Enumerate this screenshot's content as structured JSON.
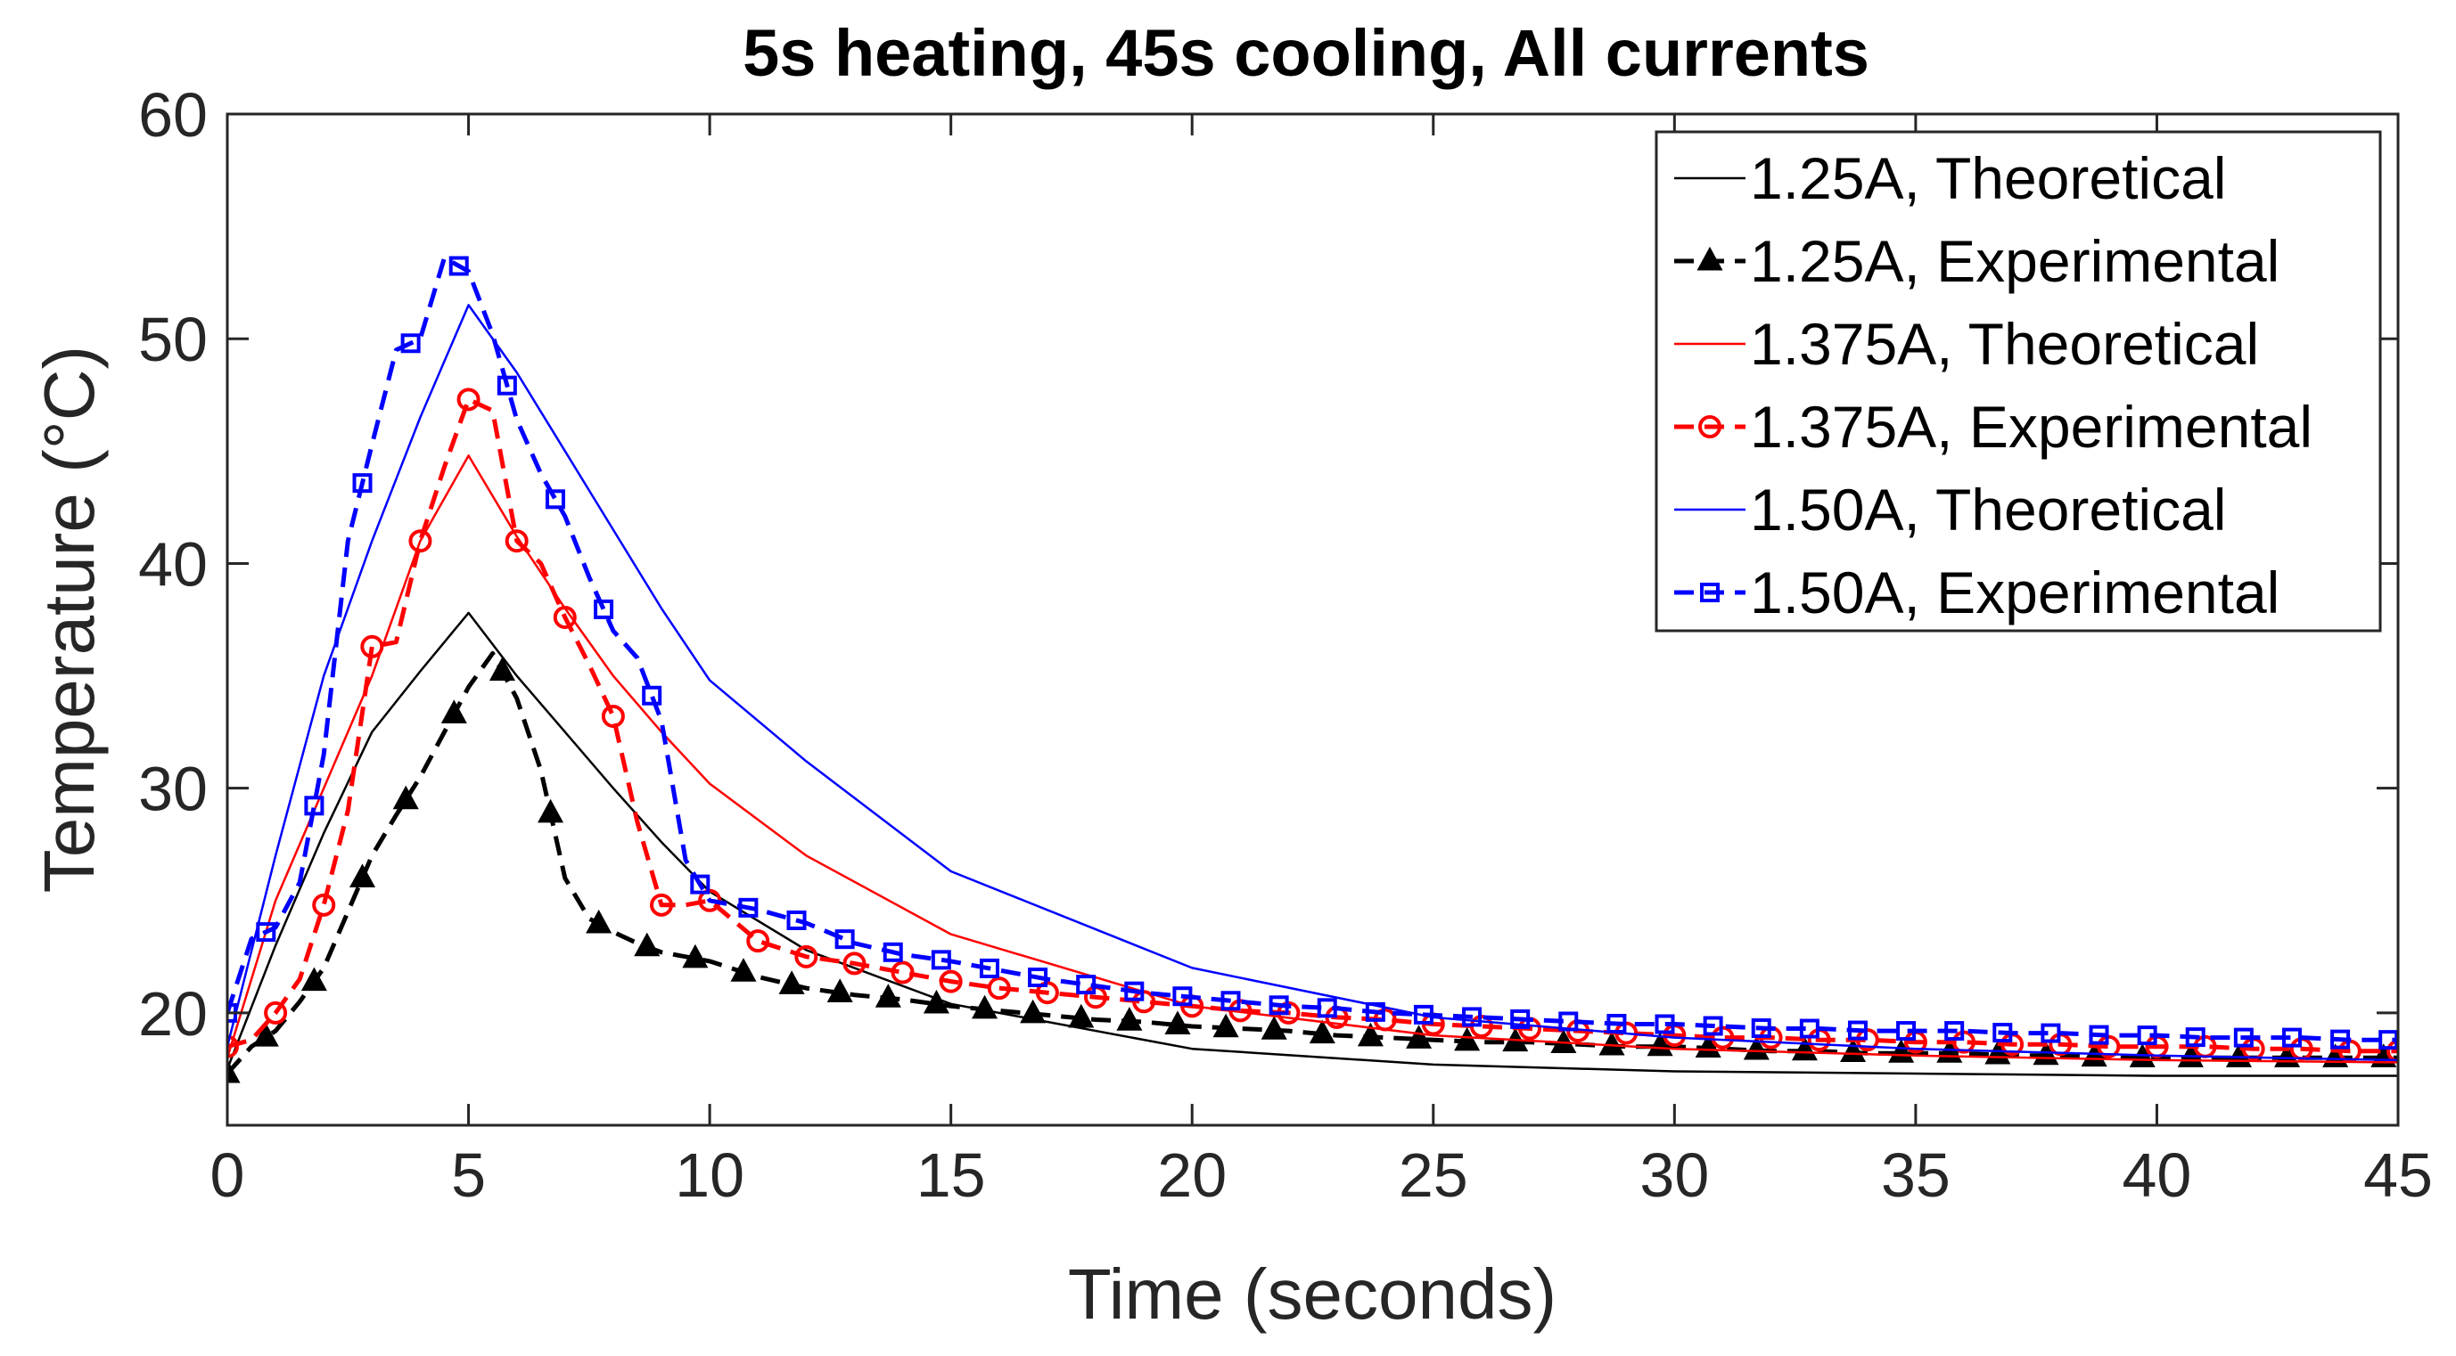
{
  "chart_data": {
    "type": "line",
    "title": "5s heating, 45s cooling, All currents",
    "xlabel": "Time (seconds)",
    "ylabel": "Temperature (°C)",
    "xlim": [
      0,
      45
    ],
    "ylim": [
      15,
      60
    ],
    "xticks": [
      0,
      5,
      10,
      15,
      20,
      25,
      30,
      35,
      40,
      45
    ],
    "yticks": [
      20,
      30,
      40,
      50,
      60
    ],
    "grid": false,
    "legend_position": "top-right",
    "series": [
      {
        "name": "1.25A, Theoretical",
        "color": "#000000",
        "style": "solid",
        "marker": "none",
        "x": [
          0,
          1,
          2,
          3,
          4,
          5,
          6,
          7,
          8,
          9,
          10,
          12,
          15,
          20,
          25,
          30,
          35,
          40,
          45
        ],
        "y": [
          17.5,
          23,
          28,
          32.5,
          35.2,
          37.8,
          35.0,
          32.5,
          30.0,
          27.6,
          25.4,
          22.8,
          20.4,
          18.4,
          17.7,
          17.4,
          17.3,
          17.2,
          17.2
        ]
      },
      {
        "name": "1.25A, Experimental",
        "color": "#000000",
        "style": "dashed",
        "marker": "triangle",
        "x": [
          0,
          0.5,
          1,
          1.5,
          2,
          2.5,
          3,
          3.5,
          4,
          4.5,
          5,
          5.5,
          6,
          6.5,
          7,
          7.5,
          8,
          8.5,
          9,
          9.5,
          10,
          11,
          12,
          13,
          14,
          15,
          16,
          17,
          18,
          19,
          20,
          21,
          22,
          23,
          24,
          25,
          26,
          27,
          28,
          29,
          30,
          31,
          32,
          33,
          34,
          35,
          36,
          37,
          38,
          39,
          40,
          41,
          42,
          43,
          44,
          45
        ],
        "y": [
          17.3,
          18.5,
          19.2,
          20.5,
          22.0,
          24.5,
          27.0,
          28.8,
          30.5,
          32.5,
          34.5,
          36.0,
          34.0,
          30.8,
          26.0,
          24.2,
          23.6,
          23.1,
          22.7,
          22.5,
          22.3,
          21.6,
          21.1,
          20.8,
          20.6,
          20.3,
          20.1,
          19.9,
          19.7,
          19.6,
          19.4,
          19.3,
          19.2,
          19.0,
          18.9,
          18.8,
          18.7,
          18.7,
          18.6,
          18.5,
          18.5,
          18.4,
          18.3,
          18.3,
          18.2,
          18.2,
          18.2,
          18.1,
          18.1,
          18.0,
          18.0,
          18.0,
          18.0,
          18.0,
          18.0,
          18.0
        ],
        "marker_x": [
          0,
          0.8,
          1.8,
          2.8,
          3.7,
          4.7,
          5.7,
          6.7,
          7.7,
          8.7,
          9.7,
          10.7,
          11.7,
          12.7,
          13.7,
          14.7,
          15.7,
          16.7,
          17.7,
          18.7,
          19.7,
          20.7,
          21.7,
          22.7,
          23.7,
          24.7,
          25.7,
          26.7,
          27.7,
          28.7,
          29.7,
          30.7,
          31.7,
          32.7,
          33.7,
          34.7,
          35.7,
          36.7,
          37.7,
          38.7,
          39.7,
          40.7,
          41.7,
          42.7,
          43.7,
          44.7
        ]
      },
      {
        "name": "1.375A, Theoretical",
        "color": "#ff0000",
        "style": "solid",
        "marker": "none",
        "x": [
          0,
          1,
          2,
          3,
          4,
          5,
          6,
          7,
          8,
          9,
          10,
          12,
          15,
          20,
          25,
          30,
          35,
          40,
          45
        ],
        "y": [
          18.0,
          25,
          30,
          35,
          41,
          44.8,
          41.2,
          38,
          35,
          32.5,
          30.2,
          27.0,
          23.5,
          20.3,
          19.0,
          18.4,
          18.1,
          17.9,
          17.8
        ]
      },
      {
        "name": "1.375A, Experimental",
        "color": "#ff0000",
        "style": "dashed",
        "marker": "circle",
        "x": [
          0,
          0.5,
          1,
          1.5,
          2,
          2.5,
          3,
          3.5,
          4,
          4.5,
          5,
          5.5,
          6,
          6.5,
          7,
          7.5,
          8,
          8.5,
          9,
          9.5,
          10,
          11,
          12,
          13,
          14,
          15,
          16,
          17,
          18,
          19,
          20,
          21,
          22,
          23,
          24,
          25,
          26,
          27,
          28,
          29,
          30,
          31,
          32,
          33,
          34,
          35,
          36,
          37,
          38,
          39,
          40,
          41,
          42,
          43,
          44,
          45
        ],
        "y": [
          18.5,
          18.8,
          20.0,
          21.5,
          24.8,
          29.0,
          36.3,
          36.5,
          41.0,
          44.3,
          47.3,
          46.8,
          41.0,
          40.0,
          37.6,
          35.5,
          33.2,
          28.5,
          24.8,
          24.8,
          25.0,
          23.2,
          22.5,
          22.2,
          21.8,
          21.4,
          21.1,
          20.9,
          20.7,
          20.5,
          20.3,
          20.1,
          20.0,
          19.8,
          19.7,
          19.5,
          19.4,
          19.3,
          19.2,
          19.1,
          19.0,
          18.9,
          18.9,
          18.8,
          18.8,
          18.7,
          18.7,
          18.6,
          18.6,
          18.5,
          18.5,
          18.5,
          18.4,
          18.4,
          18.3,
          18.3
        ],
        "marker_x": [
          0,
          1,
          2,
          3,
          4,
          5,
          6,
          7,
          8,
          9,
          10,
          11,
          12,
          13,
          14,
          15,
          16,
          17,
          18,
          19,
          20,
          21,
          22,
          23,
          24,
          25,
          26,
          27,
          28,
          29,
          30,
          31,
          32,
          33,
          34,
          35,
          36,
          37,
          38,
          39,
          40,
          41,
          42,
          43,
          44,
          45
        ]
      },
      {
        "name": "1.50A, Theoretical",
        "color": "#0000ff",
        "style": "solid",
        "marker": "none",
        "x": [
          0,
          1,
          2,
          3,
          4,
          5,
          6,
          7,
          8,
          9,
          10,
          12,
          15,
          20,
          25,
          30,
          35,
          40,
          45
        ],
        "y": [
          18.5,
          27,
          35,
          41,
          46.5,
          51.5,
          48.5,
          45,
          41.5,
          38,
          34.8,
          31.2,
          26.3,
          22.0,
          19.8,
          18.9,
          18.4,
          18.1,
          17.9
        ]
      },
      {
        "name": "1.50A, Experimental",
        "color": "#0000ff",
        "style": "dashed",
        "marker": "square",
        "x": [
          0,
          0.5,
          1,
          1.5,
          2,
          2.5,
          3,
          3.5,
          4,
          4.5,
          5,
          5.5,
          6,
          6.5,
          7,
          7.5,
          8,
          8.5,
          9,
          9.5,
          10,
          11,
          12,
          13,
          14,
          15,
          16,
          17,
          18,
          19,
          20,
          21,
          22,
          23,
          24,
          25,
          26,
          27,
          28,
          29,
          30,
          31,
          32,
          33,
          34,
          35,
          36,
          37,
          38,
          39,
          40,
          41,
          42,
          43,
          44,
          45
        ],
        "y": [
          20.0,
          23.3,
          23.8,
          25.8,
          31.5,
          41.0,
          45.3,
          49.5,
          50.0,
          53.6,
          53.0,
          50.2,
          46.4,
          44.0,
          42.1,
          39.4,
          37.0,
          35.8,
          33.0,
          26.8,
          25.0,
          24.6,
          24.0,
          23.1,
          22.6,
          22.3,
          21.9,
          21.5,
          21.2,
          20.9,
          20.7,
          20.5,
          20.3,
          20.2,
          20.0,
          19.9,
          19.8,
          19.7,
          19.6,
          19.5,
          19.5,
          19.4,
          19.3,
          19.3,
          19.2,
          19.2,
          19.2,
          19.1,
          19.1,
          19.0,
          19.0,
          18.9,
          18.9,
          18.9,
          18.8,
          18.8
        ],
        "marker_x": [
          0,
          0.8,
          1.8,
          2.8,
          3.8,
          4.8,
          5.8,
          6.8,
          7.8,
          8.8,
          9.8,
          10.8,
          11.8,
          12.8,
          13.8,
          14.8,
          15.8,
          16.8,
          17.8,
          18.8,
          19.8,
          20.8,
          21.8,
          22.8,
          23.8,
          24.8,
          25.8,
          26.8,
          27.8,
          28.8,
          29.8,
          30.8,
          31.8,
          32.8,
          33.8,
          34.8,
          35.8,
          36.8,
          37.8,
          38.8,
          39.8,
          40.8,
          41.8,
          42.8,
          43.8,
          44.8
        ]
      }
    ]
  }
}
